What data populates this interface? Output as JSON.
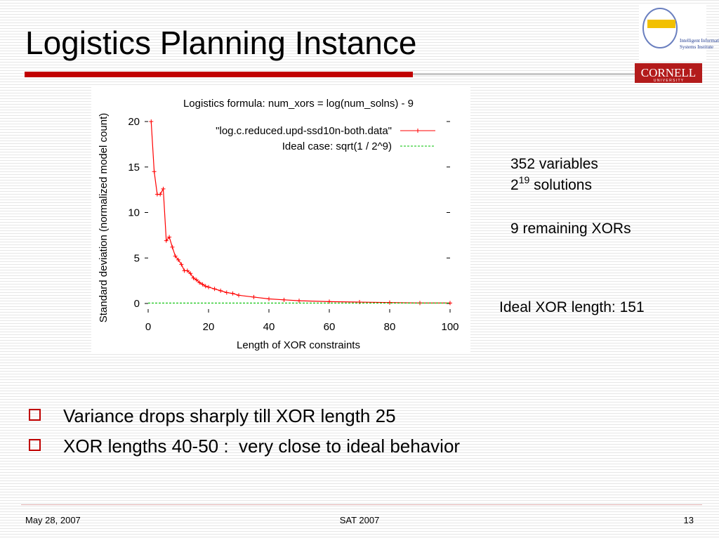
{
  "title": "Logistics Planning Instance",
  "logo": {
    "lines": [
      "Intelligent Information",
      "Systems Institute"
    ],
    "cornell": "CORNELL",
    "university": "U N I V E R S I T Y"
  },
  "annotations": {
    "variables": "352 variables",
    "solutions": {
      "base": "2",
      "exponent": "19",
      "rest": " solutions"
    },
    "remaining": "9 remaining XORs",
    "ideal": "Ideal XOR length: 151"
  },
  "bullets": [
    "Variance drops sharply till XOR length 25",
    "XOR lengths 40-50 :  very close to ideal behavior"
  ],
  "footer": {
    "date": "May 28, 2007",
    "event": "SAT 2007",
    "page": "13"
  },
  "chart_data": {
    "type": "line",
    "title": "Logistics formula: num_xors = log(num_solns) - 9",
    "xlabel": "Length of XOR constraints",
    "ylabel": "Standard deviation (normalized model count)",
    "xlim": [
      0,
      100
    ],
    "ylim": [
      0,
      20
    ],
    "xticks": [
      0,
      20,
      40,
      60,
      80,
      100
    ],
    "yticks": [
      0,
      5,
      10,
      15,
      20
    ],
    "legend": "upper right",
    "series": [
      {
        "name": "\"log.c.reduced.upd-ssd10n-both.data\"",
        "color": "#ff0000",
        "markers": true,
        "x": [
          1,
          2,
          3,
          4,
          5,
          6,
          7,
          8,
          9,
          10,
          11,
          12,
          13,
          14,
          15,
          16,
          17,
          18,
          19,
          20,
          22,
          24,
          26,
          28,
          30,
          35,
          40,
          45,
          50,
          60,
          70,
          80,
          90,
          100
        ],
        "values": [
          20,
          14.5,
          12,
          12,
          12.6,
          6.9,
          7.3,
          6.2,
          5.2,
          4.8,
          4.3,
          3.6,
          3.6,
          3.3,
          2.8,
          2.6,
          2.3,
          2.1,
          1.9,
          1.8,
          1.6,
          1.4,
          1.2,
          1.1,
          0.9,
          0.7,
          0.5,
          0.4,
          0.3,
          0.2,
          0.15,
          0.1,
          0.05,
          0.05
        ]
      },
      {
        "name": "Ideal case: sqrt(1 / 2^9)",
        "color": "#00c000",
        "markers": false,
        "dashed": true,
        "x": [
          0,
          100
        ],
        "values": [
          0.044,
          0.044
        ]
      }
    ]
  }
}
